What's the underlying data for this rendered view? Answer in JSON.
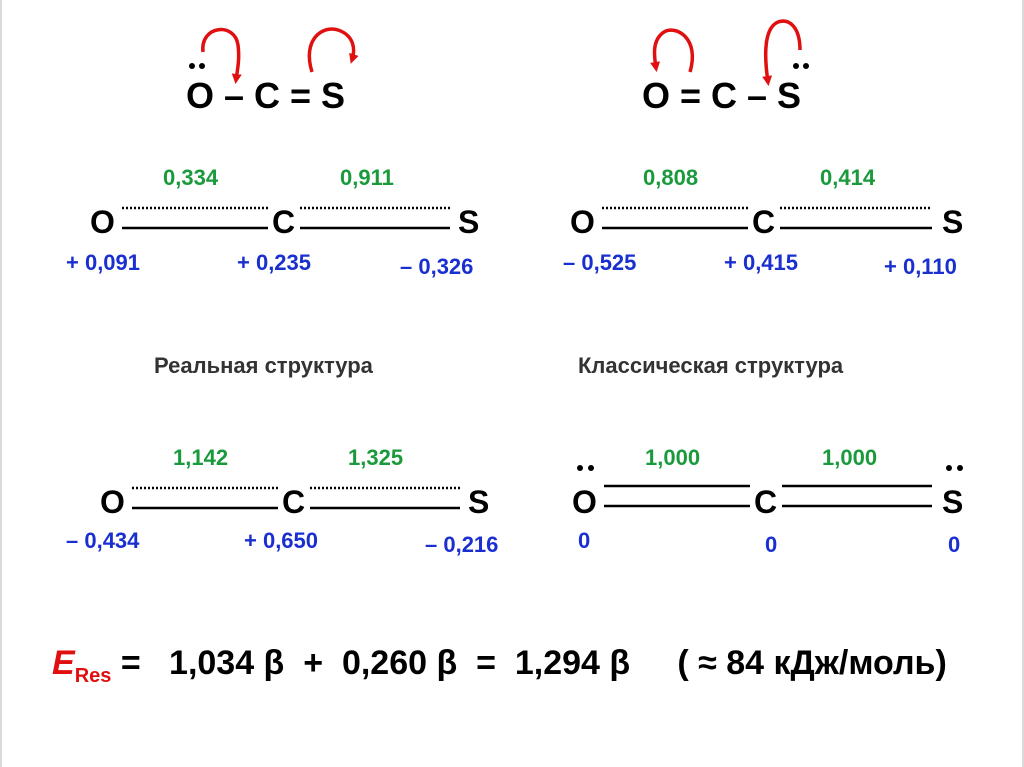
{
  "resonance_top_left": {
    "formula": "O – C = S"
  },
  "resonance_top_right": {
    "formula": "O = C – S"
  },
  "upper_left": {
    "atom_o": "O",
    "atom_c": "C",
    "atom_s": "S",
    "bond_oc": "0,334",
    "bond_cs": "0,911",
    "charge_o": "+ 0,091",
    "charge_c": "+ 0,235",
    "charge_s": "– 0,326"
  },
  "upper_right": {
    "atom_o": "O",
    "atom_c": "C",
    "atom_s": "S",
    "bond_oc": "0,808",
    "bond_cs": "0,414",
    "charge_o": "– 0,525",
    "charge_c": "+ 0,415",
    "charge_s": "+ 0,110"
  },
  "caption_real": "Реальная структура",
  "caption_classic": "Классическая структура",
  "lower_left": {
    "atom_o": "O",
    "atom_c": "C",
    "atom_s": "S",
    "bond_oc": "1,142",
    "bond_cs": "1,325",
    "charge_o": "– 0,434",
    "charge_c": "+ 0,650",
    "charge_s": "– 0,216"
  },
  "lower_right": {
    "atom_o": "O",
    "atom_c": "C",
    "atom_s": "S",
    "bond_oc": "1,000",
    "bond_cs": "1,000",
    "charge_o": "0",
    "charge_c": "0",
    "charge_s": "0"
  },
  "equation": {
    "symbol": "E",
    "subscript": "Res",
    "rhs": " =   1,034 β  +  0,260 β  =  1,294 β     ( ≈ 84 кДж/моль)"
  },
  "colors": {
    "bond_order": "#1a9a3c",
    "charge": "#1a2fd0",
    "arrow": "#e01010"
  }
}
